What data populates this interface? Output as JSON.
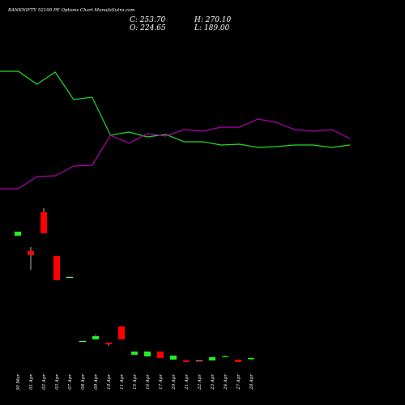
{
  "title": "BANKNIFTY 52100 PE Options Chart MunafaSutra.com",
  "info": [
    "C: 253.70",
    "H: 270.10",
    "O: 224.65",
    "L: 189.00"
  ],
  "chart_data": [
    {
      "type": "candlestick",
      "categories": [
        "30 Mar",
        "01 Apr",
        "02 Apr",
        "03 Apr",
        "07 Apr",
        "08 Apr",
        "09 Apr",
        "10 Apr",
        "11 Apr",
        "15 Apr",
        "16 Apr",
        "17 Apr",
        "20 Apr",
        "21 Apr",
        "22 Apr",
        "23 Apr",
        "24 Apr",
        "27 Apr",
        "28 Apr"
      ],
      "open": [
        3198,
        2828,
        3764,
        2711,
        2204,
        663,
        702,
        624,
        1014,
        332,
        293,
        410,
        215,
        195,
        195,
        195,
        273,
        215,
        224.65
      ],
      "high": [
        3296,
        2925,
        3861,
        2711,
        2204,
        663,
        839,
        624,
        1014,
        410,
        410,
        410,
        312,
        195,
        195,
        273,
        332,
        215,
        270.1
      ],
      "low": [
        3198,
        2379,
        3257,
        2126,
        2204,
        663,
        702,
        546,
        702,
        332,
        293,
        254,
        215,
        156,
        176,
        195,
        273,
        156,
        189.0
      ],
      "close": [
        3296,
        2730,
        3257,
        2126,
        2204,
        663,
        780,
        585,
        702,
        410,
        410,
        254,
        312,
        156,
        176,
        273,
        293,
        156,
        253.7
      ],
      "up_color": "#22ee22",
      "down_color": "#ff0000",
      "ylim": [
        -877.5,
        8872.5
      ]
    },
    {
      "type": "line",
      "series": [
        {
          "name": "price",
          "color": "#22dd22",
          "values": [
            412,
            412,
            396,
            411,
            377,
            380,
            333,
            337,
            331,
            334,
            325,
            325,
            321,
            322,
            318,
            319,
            321,
            321,
            318,
            321
          ]
        },
        {
          "name": "oi",
          "color": "#b000b0",
          "values": [
            267,
            267,
            282,
            283,
            295,
            296,
            333,
            323,
            335,
            332,
            340,
            338,
            343,
            343,
            353,
            349,
            340,
            338,
            340,
            329
          ]
        }
      ],
      "ylim": [
        0,
        500
      ]
    }
  ]
}
